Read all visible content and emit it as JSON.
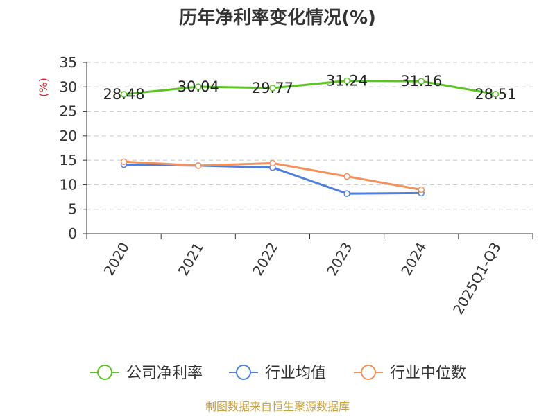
{
  "chart_data": {
    "type": "line",
    "title": "历年净利率变化情况(%)",
    "ylabel": "(%)",
    "categories": [
      "2020",
      "2021",
      "2022",
      "2023",
      "2024",
      "2025Q1-Q3"
    ],
    "ylim": [
      0,
      35
    ],
    "yticks": [
      0,
      5,
      10,
      15,
      20,
      25,
      30,
      35
    ],
    "grid": true,
    "legend_position": "bottom",
    "series": [
      {
        "name": "公司净利率",
        "color": "#5bc424",
        "values": [
          28.48,
          30.04,
          29.77,
          31.24,
          31.16,
          28.51
        ],
        "labels": [
          "28.48",
          "30.04",
          "29.77",
          "31.24",
          "31.16",
          "28.51"
        ]
      },
      {
        "name": "行业均值",
        "color": "#4f7fdb",
        "values": [
          14.1,
          13.9,
          13.5,
          8.2,
          8.3,
          null
        ]
      },
      {
        "name": "行业中位数",
        "color": "#f4905a",
        "values": [
          14.7,
          13.9,
          14.4,
          11.7,
          9.0,
          null
        ]
      }
    ]
  },
  "footer": {
    "source": "制图数据来自恒生聚源数据库"
  }
}
